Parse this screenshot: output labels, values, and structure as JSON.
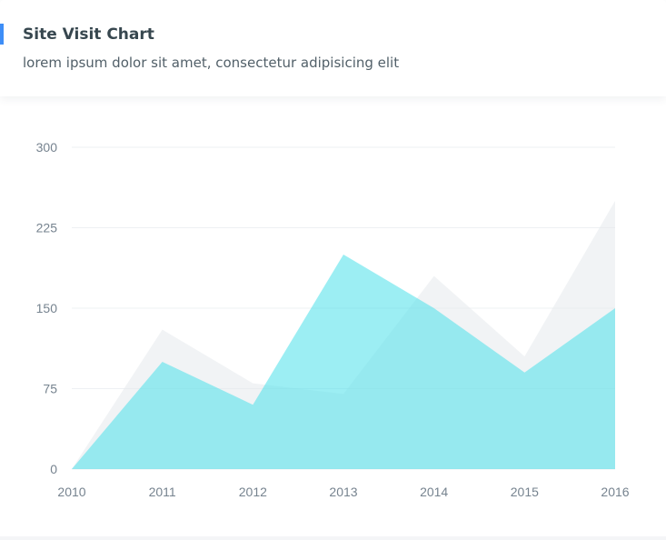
{
  "header": {
    "title": "Site Visit Chart",
    "subtitle": "lorem ipsum dolor sit amet, consectetur adipisicing elit",
    "accent_color": "#3e8ef7"
  },
  "chart_data": {
    "type": "area",
    "title": "Site Visit Chart",
    "x": [
      "2010",
      "2011",
      "2012",
      "2013",
      "2014",
      "2015",
      "2016"
    ],
    "series": [
      {
        "values": [
          0,
          130,
          80,
          70,
          180,
          105,
          250
        ],
        "color": "#e4e7ec",
        "opacity": 0.5
      },
      {
        "values": [
          0,
          100,
          60,
          200,
          150,
          90,
          150
        ],
        "color": "#4ae0e9",
        "opacity": 0.55
      }
    ],
    "y_ticks": [
      "300",
      "225",
      "150",
      "75",
      "0"
    ],
    "ylim": [
      0,
      300
    ],
    "grid": true,
    "xlabel": "",
    "ylabel": ""
  }
}
